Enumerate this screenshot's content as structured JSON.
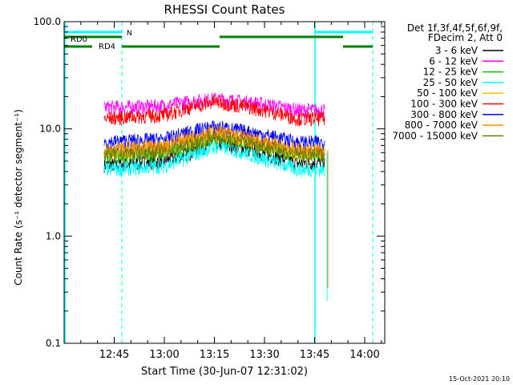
{
  "chart_data": {
    "type": "line",
    "title": "RHESSI Count Rates",
    "xlabel": "Start Time (30-Jun-07 12:31:02)",
    "ylabel": "Count Rate (s⁻¹ detector segment⁻¹)",
    "y_scale": "log",
    "ylim": [
      0.1,
      100
    ],
    "x_range_minutes": [
      12.5,
      14.1
    ],
    "x_ticks": [
      "12:45",
      "13:00",
      "13:15",
      "13:30",
      "13:45",
      "14:00"
    ],
    "y_ticks": [
      "0.1",
      "1.0",
      "10.0",
      "100.0"
    ],
    "legend": {
      "placement": "right",
      "header1": "Det 1f,3f,4f,5f,6f,9f,",
      "header2": "FDecim 2, Att 0"
    },
    "footer_date": "15-Oct-2021 20:10",
    "attenuator_labels": {
      "n": "N",
      "rd0": "RD0",
      "rd4": "RD4"
    },
    "profile_x": [
      "12:42",
      "12:50",
      "13:00",
      "13:08",
      "13:15",
      "13:20",
      "13:30",
      "13:40",
      "13:47",
      "13:48"
    ],
    "series": [
      {
        "name": "3 - 6 keV",
        "color": "#000000",
        "values": [
          4.6,
          4.7,
          5.0,
          6.0,
          7.5,
          7.0,
          5.8,
          4.8,
          4.9,
          4.8
        ]
      },
      {
        "name": "6 - 12 keV",
        "color": "#ff00ff",
        "values": [
          16.0,
          16.0,
          16.5,
          18.0,
          19.0,
          18.5,
          17.0,
          15.0,
          15.0,
          15.0
        ]
      },
      {
        "name": "12 - 25 keV",
        "color": "#00c800",
        "values": [
          5.5,
          5.6,
          6.0,
          7.0,
          8.2,
          8.0,
          6.8,
          5.8,
          5.8,
          5.8
        ]
      },
      {
        "name": "25 - 50 keV",
        "color": "#00ffff",
        "values": [
          4.2,
          4.3,
          4.5,
          5.6,
          6.8,
          6.5,
          5.2,
          4.2,
          4.2,
          4.1
        ]
      },
      {
        "name": "50 - 100 keV",
        "color": "#ffbf00",
        "values": [
          6.0,
          6.2,
          6.5,
          7.8,
          9.0,
          8.5,
          7.2,
          6.0,
          6.0,
          6.0
        ]
      },
      {
        "name": "100 - 300 keV",
        "color": "#ff0000",
        "values": [
          12.5,
          13.0,
          13.5,
          16.0,
          18.0,
          17.0,
          15.0,
          12.5,
          12.5,
          12.5
        ]
      },
      {
        "name": "300 - 800 keV",
        "color": "#0000ff",
        "values": [
          7.5,
          7.8,
          8.0,
          9.5,
          10.5,
          10.0,
          8.8,
          7.5,
          7.5,
          7.5
        ]
      },
      {
        "name": "800 - 7000 keV",
        "color": "#ff8c00",
        "values": [
          6.5,
          6.6,
          7.0,
          8.5,
          9.5,
          9.0,
          7.5,
          6.4,
          6.4,
          6.4
        ]
      },
      {
        "name": "7000 - 15000 keV",
        "color": "#787800",
        "values": [
          5.8,
          6.0,
          6.2,
          7.2,
          8.5,
          8.0,
          7.0,
          5.8,
          5.8,
          5.8
        ]
      }
    ]
  }
}
